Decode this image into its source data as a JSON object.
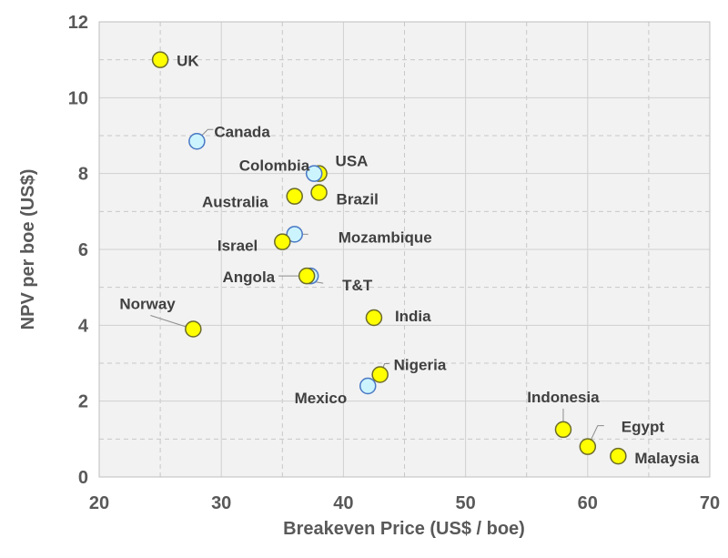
{
  "chart_data": {
    "type": "scatter",
    "title": "",
    "xlabel": "Breakeven Price (US$ / boe)",
    "ylabel": "NPV per boe (US$)",
    "xlim": [
      20,
      70
    ],
    "ylim": [
      0,
      12
    ],
    "xticks": [
      "20",
      "30",
      "40",
      "50",
      "60",
      "70"
    ],
    "yticks": [
      "0",
      "2",
      "4",
      "6",
      "8",
      "10",
      "12"
    ],
    "grid": true,
    "colors": {
      "yellow_fill": "#FFFF00",
      "yellow_stroke": "#6B6B2A",
      "blue_fill": "#CCF4FF",
      "blue_stroke": "#4A78C4",
      "plot_bg": "#F2F2F2"
    },
    "points": [
      {
        "label": "UK",
        "x": 25,
        "y": 11.0,
        "group": "yellow"
      },
      {
        "label": "Canada",
        "x": 28,
        "y": 8.85,
        "group": "blue"
      },
      {
        "label": "USA",
        "x": 38,
        "y": 8.0,
        "group": "yellow"
      },
      {
        "label": "Colombia",
        "x": 37.6,
        "y": 8.0,
        "group": "blue"
      },
      {
        "label": "Australia",
        "x": 36,
        "y": 7.4,
        "group": "yellow"
      },
      {
        "label": "Brazil",
        "x": 38,
        "y": 7.5,
        "group": "yellow"
      },
      {
        "label": "Mozambique",
        "x": 36,
        "y": 6.4,
        "group": "blue"
      },
      {
        "label": "Israel",
        "x": 35,
        "y": 6.2,
        "group": "yellow"
      },
      {
        "label": "T&T",
        "x": 37.3,
        "y": 5.3,
        "group": "blue"
      },
      {
        "label": "Angola",
        "x": 37,
        "y": 5.3,
        "group": "yellow"
      },
      {
        "label": "Norway",
        "x": 27.7,
        "y": 3.9,
        "group": "yellow"
      },
      {
        "label": "India",
        "x": 42.5,
        "y": 4.2,
        "group": "yellow"
      },
      {
        "label": "Mexico",
        "x": 42,
        "y": 2.4,
        "group": "blue"
      },
      {
        "label": "Nigeria",
        "x": 43,
        "y": 2.7,
        "group": "yellow"
      },
      {
        "label": "Indonesia",
        "x": 58,
        "y": 1.25,
        "group": "yellow"
      },
      {
        "label": "Egypt",
        "x": 60,
        "y": 0.8,
        "group": "yellow"
      },
      {
        "label": "Malaysia",
        "x": 62.5,
        "y": 0.55,
        "group": "yellow"
      }
    ]
  }
}
